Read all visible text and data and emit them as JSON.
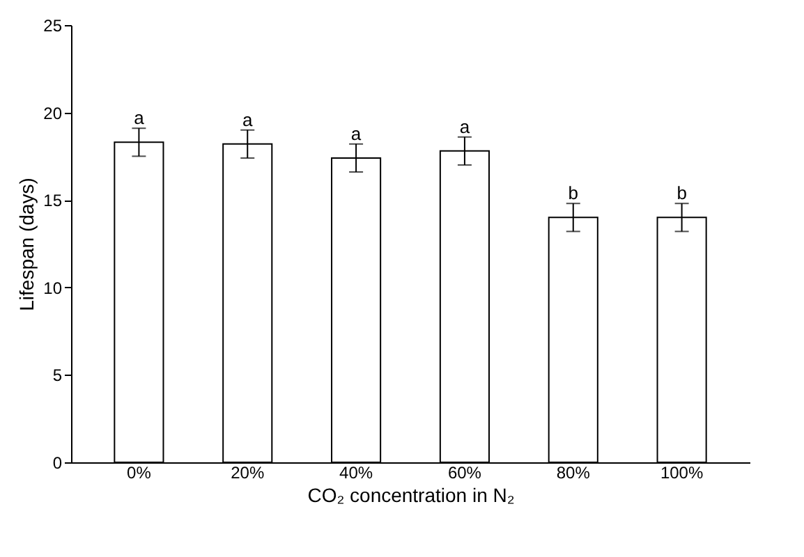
{
  "chart_data": {
    "type": "bar",
    "xlabel": "CO₂ concentration in N₂",
    "ylabel": "Lifespan (days)",
    "categories": [
      "0%",
      "20%",
      "40%",
      "60%",
      "80%",
      "100%"
    ],
    "values": [
      18.3,
      18.2,
      17.4,
      17.8,
      14.0,
      14.0
    ],
    "errors": [
      0.8,
      0.8,
      0.8,
      0.8,
      0.8,
      0.8
    ],
    "color": "#ffffff",
    "ylim": [
      0,
      25
    ],
    "yticks": [
      0,
      5,
      10,
      15,
      20,
      25
    ],
    "grid": false,
    "annotations": [
      {
        "text": "a",
        "x": "0%",
        "y": 19.1
      },
      {
        "text": "a",
        "x": "20%",
        "y": 19.0
      },
      {
        "text": "a",
        "x": "40%",
        "y": 18.2
      },
      {
        "text": "a",
        "x": "60%",
        "y": 18.6
      },
      {
        "text": "b",
        "x": "80%",
        "y": 14.8
      },
      {
        "text": "b",
        "x": "100%",
        "y": 14.8
      }
    ]
  }
}
